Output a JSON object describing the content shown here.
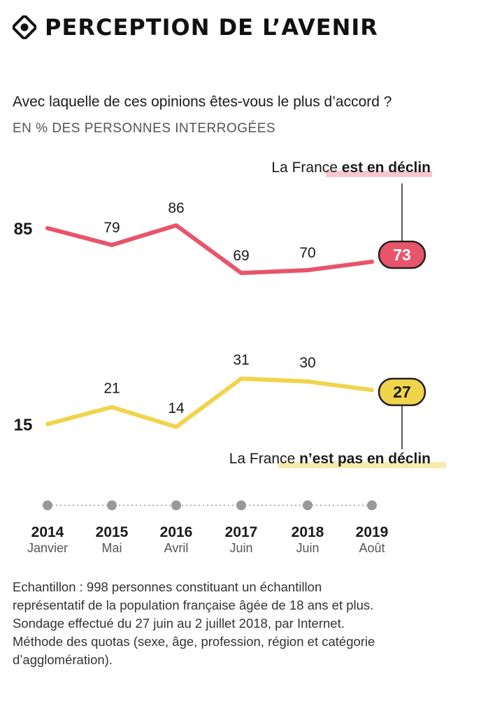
{
  "header": {
    "title": "PERCEPTION DE L’AVENIR",
    "icon": "target-icon"
  },
  "question": "Avec laquelle de ces opinions êtes-vous le plus d’accord ?",
  "unit": "EN % DES PERSONNES INTERROGÉES",
  "colors": {
    "decline": "#e8546a",
    "not_decline": "#f0d44c",
    "highlight_pink": "#f7c6cf",
    "highlight_yellow": "#f7ebae",
    "axis": "#999999"
  },
  "chart_data": {
    "type": "line",
    "title": "PERCEPTION DE L’AVENIR",
    "subtitle": "Avec laquelle de ces opinions êtes-vous le plus d’accord ?",
    "ylabel": "EN % DES PERSONNES INTERROGÉES",
    "categories": [
      {
        "year": "2014",
        "month": "Janvier"
      },
      {
        "year": "2015",
        "month": "Mai"
      },
      {
        "year": "2016",
        "month": "Avril"
      },
      {
        "year": "2017",
        "month": "Juin"
      },
      {
        "year": "2018",
        "month": "Juin"
      },
      {
        "year": "2019",
        "month": "Août"
      }
    ],
    "series": [
      {
        "name": "La France est en déclin",
        "prefix": "La France ",
        "emphasis": "est en déclin",
        "values": [
          85,
          79,
          86,
          69,
          70,
          73
        ]
      },
      {
        "name": "La France n’est pas en déclin",
        "prefix": "La France ",
        "emphasis": "n’est pas en déclin",
        "values": [
          15,
          21,
          14,
          31,
          30,
          27
        ]
      }
    ]
  },
  "footnote": {
    "lines": [
      "Echantillon : 998 personnes constituant un échantillon",
      "représentatif de la population française âgée de 18 ans et plus.",
      "Sondage effectué du 27 juin au 2 juillet 2018, par Internet.",
      "Méthode des quotas (sexe, âge, profession, région et catégorie",
      "d’agglomération)."
    ]
  }
}
